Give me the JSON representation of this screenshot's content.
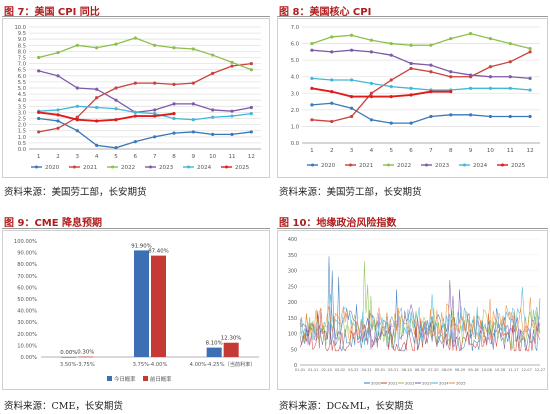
{
  "colors": {
    "title": "#b01c1c",
    "grid": "#e3e3e3",
    "axis": "#9a9a9a"
  },
  "panels": {
    "fig7": {
      "title": "图 7：美国 CPI 同比",
      "source": "资料来源：美国劳工部，长安期货"
    },
    "fig8": {
      "title": "图 8：美国核心 CPI",
      "source": "资料来源：美国劳工部，长安期货"
    },
    "fig9": {
      "title": "图 9：CME 降息预期",
      "source": "资料来源：CME，长安期货"
    },
    "fig10": {
      "title": "图 10：地缘政治风险指数",
      "source": "资料来源：DC&ML，长安期货"
    }
  },
  "chart_data": [
    {
      "id": "fig7",
      "type": "line",
      "x": [
        "1",
        "2",
        "3",
        "4",
        "5",
        "6",
        "7",
        "8",
        "9",
        "10",
        "11",
        "12"
      ],
      "ylim": [
        0,
        10
      ],
      "yticks": [
        "0.0",
        "0.5",
        "1.0",
        "1.5",
        "2.0",
        "2.5",
        "3.0",
        "3.5",
        "4.0",
        "4.5",
        "5.0",
        "5.5",
        "6.0",
        "6.5",
        "7.0",
        "7.5",
        "8.0",
        "8.5",
        "9.0",
        "9.5",
        "10.0"
      ],
      "legend_position": "bottom",
      "series": [
        {
          "name": "2020",
          "color": "#3a78b8",
          "values": [
            2.5,
            2.3,
            1.5,
            0.3,
            0.1,
            0.6,
            1.0,
            1.3,
            1.4,
            1.2,
            1.2,
            1.4
          ]
        },
        {
          "name": "2021",
          "color": "#c9423c",
          "values": [
            1.4,
            1.7,
            2.6,
            4.2,
            5.0,
            5.4,
            5.4,
            5.3,
            5.4,
            6.2,
            6.8,
            7.0
          ]
        },
        {
          "name": "2022",
          "color": "#8cbf4c",
          "values": [
            7.5,
            7.9,
            8.5,
            8.3,
            8.6,
            9.1,
            8.5,
            8.3,
            8.2,
            7.7,
            7.1,
            6.5
          ]
        },
        {
          "name": "2023",
          "color": "#7e5aa8",
          "values": [
            6.4,
            6.0,
            5.0,
            4.9,
            4.0,
            3.0,
            3.2,
            3.7,
            3.7,
            3.2,
            3.1,
            3.4
          ]
        },
        {
          "name": "2024",
          "color": "#44b6d8",
          "values": [
            3.1,
            3.2,
            3.5,
            3.4,
            3.3,
            3.0,
            2.9,
            2.5,
            2.4,
            2.6,
            2.7,
            2.9
          ]
        },
        {
          "name": "2025",
          "color": "#e01b1b",
          "values": [
            3.0,
            2.8,
            2.4,
            2.3,
            2.4,
            2.7,
            2.7,
            2.9,
            null,
            null,
            null,
            null
          ]
        }
      ]
    },
    {
      "id": "fig8",
      "type": "line",
      "x": [
        "1",
        "2",
        "3",
        "4",
        "5",
        "6",
        "7",
        "8",
        "9",
        "10",
        "11",
        "12"
      ],
      "ylim": [
        0,
        7
      ],
      "yticks": [
        "0.0",
        "1.0",
        "2.0",
        "3.0",
        "4.0",
        "5.0",
        "6.0",
        "7.0"
      ],
      "legend_position": "bottom",
      "series": [
        {
          "name": "2020",
          "color": "#3a78b8",
          "values": [
            2.3,
            2.4,
            2.1,
            1.4,
            1.2,
            1.2,
            1.6,
            1.7,
            1.7,
            1.6,
            1.6,
            1.6
          ]
        },
        {
          "name": "2021",
          "color": "#c9423c",
          "values": [
            1.4,
            1.3,
            1.6,
            3.0,
            3.8,
            4.5,
            4.3,
            4.0,
            4.0,
            4.6,
            4.9,
            5.5
          ]
        },
        {
          "name": "2022",
          "color": "#8cbf4c",
          "values": [
            6.0,
            6.4,
            6.5,
            6.2,
            6.0,
            5.9,
            5.9,
            6.3,
            6.6,
            6.3,
            6.0,
            5.7
          ]
        },
        {
          "name": "2023",
          "color": "#7e5aa8",
          "values": [
            5.6,
            5.5,
            5.6,
            5.5,
            5.3,
            4.8,
            4.7,
            4.3,
            4.1,
            4.0,
            4.0,
            3.9
          ]
        },
        {
          "name": "2024",
          "color": "#44b6d8",
          "values": [
            3.9,
            3.8,
            3.8,
            3.6,
            3.4,
            3.3,
            3.2,
            3.2,
            3.3,
            3.3,
            3.3,
            3.2
          ]
        },
        {
          "name": "2025",
          "color": "#e01b1b",
          "values": [
            3.3,
            3.1,
            2.8,
            2.8,
            2.8,
            2.9,
            3.1,
            3.1,
            null,
            null,
            null,
            null
          ]
        }
      ]
    },
    {
      "id": "fig9",
      "type": "bar",
      "categories": [
        "3.50%-3.75%",
        "3.75%-4.00%",
        "4.00%-4.25%（当前利率）"
      ],
      "ylim": [
        0,
        100
      ],
      "yticks": [
        "0.00%",
        "10.00%",
        "20.00%",
        "30.00%",
        "40.00%",
        "50.00%",
        "60.00%",
        "70.00%",
        "80.00%",
        "90.00%",
        "100.00%"
      ],
      "legend_position": "bottom",
      "series": [
        {
          "name": "今日概率",
          "color": "#3d6fb5",
          "values": [
            0.0,
            91.9,
            8.1
          ],
          "labels": [
            "0.00%",
            "91.90%",
            "8.10%"
          ]
        },
        {
          "name": "前日概率",
          "color": "#c63a36",
          "values": [
            0.3,
            87.4,
            12.3
          ],
          "labels": [
            "0.30%",
            "87.40%",
            "12.30%"
          ]
        }
      ]
    }
  ],
  "fig10": {
    "type": "line",
    "ylim": [
      0,
      400
    ],
    "yticks": [
      "0",
      "50",
      "100",
      "150",
      "200",
      "250",
      "300",
      "350",
      "400"
    ],
    "xticks": [
      "01-01",
      "01-21",
      "02-10",
      "03-02",
      "03-22",
      "04-11",
      "05-01",
      "05-21",
      "06-10",
      "06-30",
      "07-20",
      "08-09",
      "08-29",
      "09-18",
      "10-08",
      "10-28",
      "11-17",
      "12-07",
      "12-27"
    ],
    "legend_position": "bottom",
    "series": [
      {
        "name": "2020",
        "color": "#3a78b8"
      },
      {
        "name": "2021",
        "color": "#c9423c"
      },
      {
        "name": "2022",
        "color": "#8cbf4c"
      },
      {
        "name": "2023",
        "color": "#7e5aa8"
      },
      {
        "name": "2024",
        "color": "#44b6d8"
      },
      {
        "name": "2025",
        "color": "#f08a32"
      }
    ]
  }
}
